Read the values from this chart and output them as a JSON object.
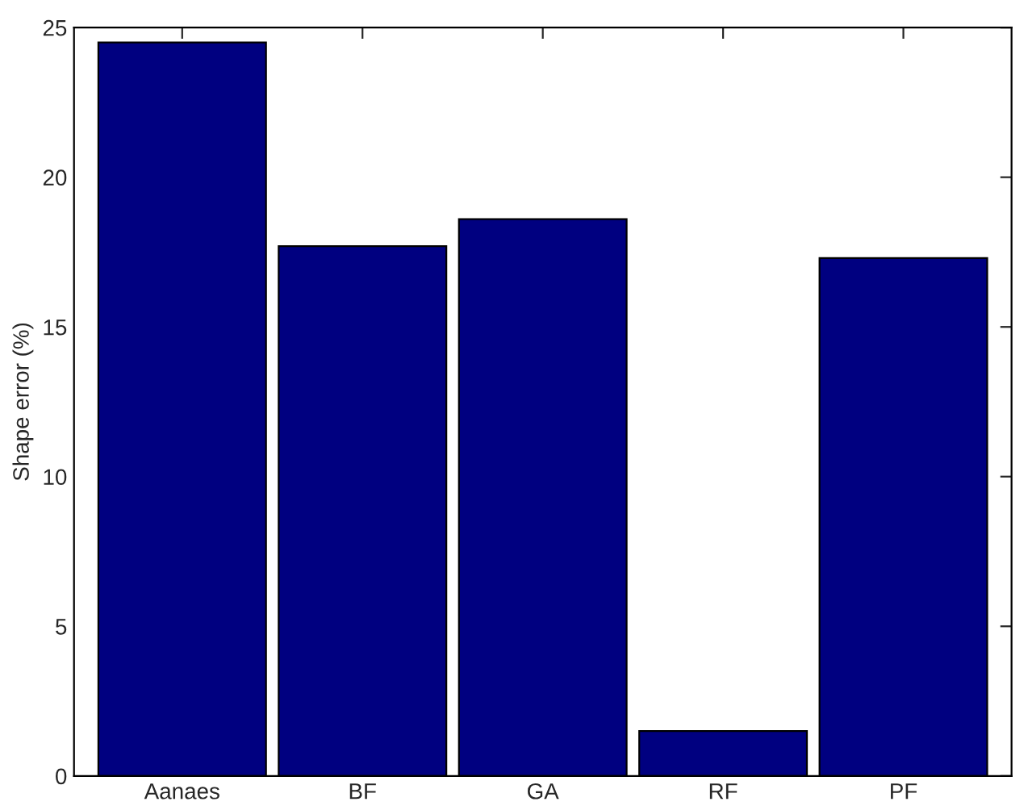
{
  "chart_data": {
    "type": "bar",
    "ylabel": "Shape error (%)",
    "categories": [
      "Aanaes",
      "BF",
      "GA",
      "RF",
      "PF"
    ],
    "values": [
      24.5,
      17.7,
      18.6,
      1.5,
      17.3
    ],
    "color": "#000080",
    "ylim": [
      0,
      25
    ],
    "yticks": [
      0,
      5,
      10,
      15,
      20,
      25
    ],
    "grid": false
  }
}
